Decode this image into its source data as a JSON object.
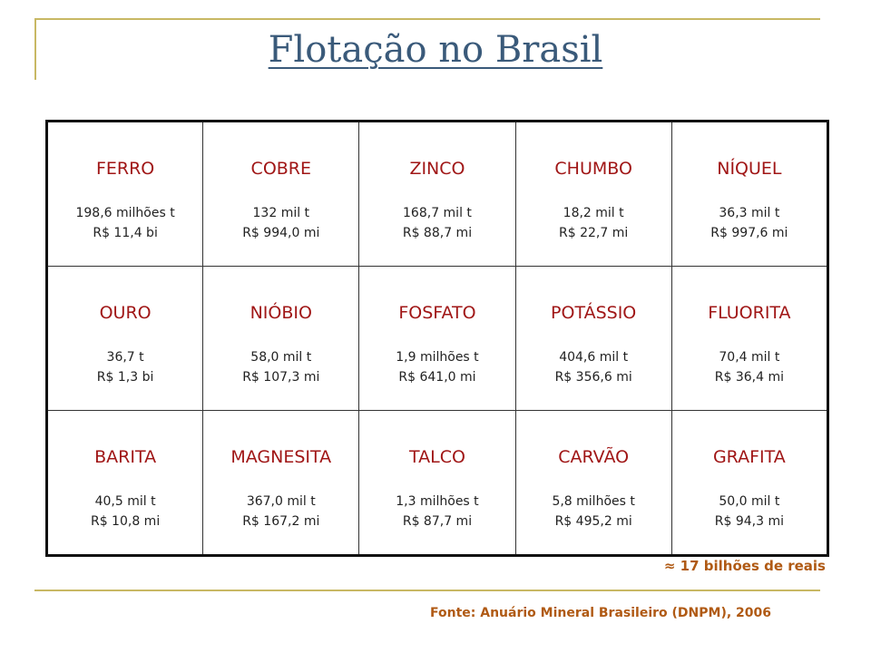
{
  "title": "Flotação no Brasil",
  "rows": [
    [
      {
        "name": "FERRO",
        "qty": "198,6 milhões t",
        "value": "R$ 11,4 bi"
      },
      {
        "name": "COBRE",
        "qty": "132 mil t",
        "value": "R$ 994,0 mi"
      },
      {
        "name": "ZINCO",
        "qty": "168,7 mil t",
        "value": "R$ 88,7 mi"
      },
      {
        "name": "CHUMBO",
        "qty": "18,2 mil t",
        "value": "R$ 22,7 mi"
      },
      {
        "name": "NÍQUEL",
        "qty": "36,3 mil t",
        "value": "R$ 997,6 mi"
      }
    ],
    [
      {
        "name": "OURO",
        "qty": "36,7 t",
        "value": "R$ 1,3 bi"
      },
      {
        "name": "NIÓBIO",
        "qty": "58,0 mil t",
        "value": "R$ 107,3 mi"
      },
      {
        "name": "FOSFATO",
        "qty": "1,9 milhões t",
        "value": "R$ 641,0 mi"
      },
      {
        "name": "POTÁSSIO",
        "qty": "404,6 mil t",
        "value": "R$ 356,6 mi"
      },
      {
        "name": "FLUORITA",
        "qty": "70,4 mil t",
        "value": "R$ 36,4 mi"
      }
    ],
    [
      {
        "name": "BARITA",
        "qty": "40,5 mil t",
        "value": "R$ 10,8 mi"
      },
      {
        "name": "MAGNESITA",
        "qty": "367,0 mil t",
        "value": "R$ 167,2 mi"
      },
      {
        "name": "TALCO",
        "qty": "1,3 milhões t",
        "value": "R$ 87,7 mi"
      },
      {
        "name": "CARVÃO",
        "qty": "5,8 milhões t",
        "value": "R$ 495,2 mi"
      },
      {
        "name": "GRAFITA",
        "qty": "50,0 mil t",
        "value": "R$ 94,3 mi"
      }
    ]
  ],
  "total": "≈ 17 bilhões de reais",
  "source": "Fonte: Anuário Mineral Brasileiro (DNPM), 2006"
}
